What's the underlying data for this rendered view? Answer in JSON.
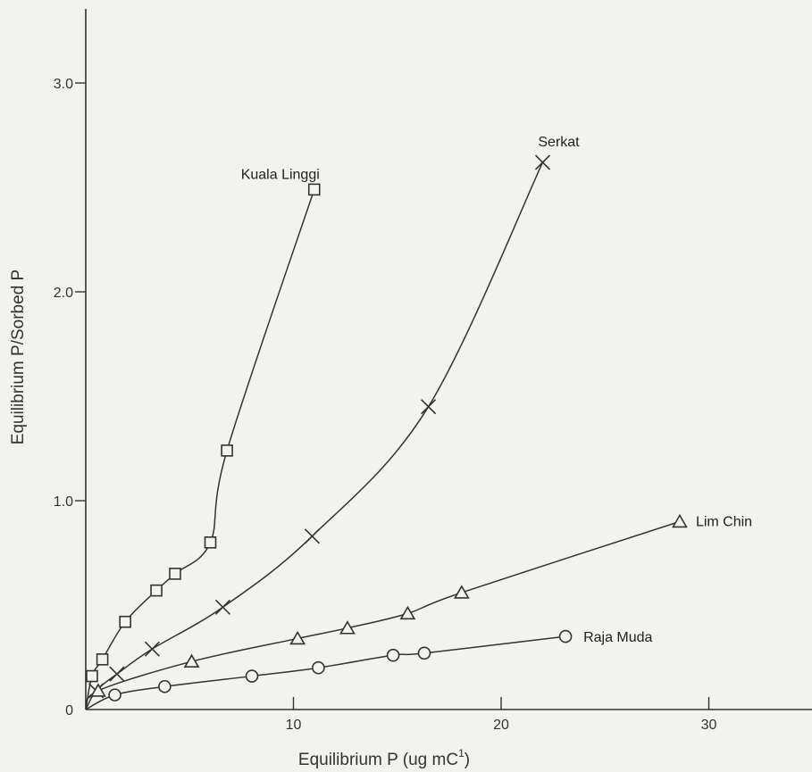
{
  "chart_data": {
    "type": "line",
    "xlabel": "Equilibrium P (ug mC",
    "xlabel_sup": "1",
    "xlabel_end": ")",
    "ylabel": "Equilibrium P/Sorbed P",
    "xlim": [
      0,
      35
    ],
    "ylim": [
      0,
      3.3
    ],
    "x_ticks": [
      0,
      10,
      20,
      30
    ],
    "x_tick_labels": [
      "",
      "10",
      "20",
      "30"
    ],
    "y_ticks": [
      0,
      1.0,
      2.0,
      3.0
    ],
    "y_tick_labels": [
      "0",
      "1.0",
      "2.0",
      "3.0"
    ],
    "grid": false,
    "legend": "labels at line ends",
    "series": [
      {
        "name": "Kuala Linggi",
        "marker": "square",
        "x": [
          0.3,
          0.8,
          1.9,
          3.4,
          4.3,
          6.0,
          6.8,
          11.0
        ],
        "y": [
          0.16,
          0.24,
          0.42,
          0.57,
          0.65,
          0.8,
          1.24,
          2.49
        ]
      },
      {
        "name": "Serkat",
        "marker": "x",
        "x": [
          0.5,
          1.5,
          3.2,
          6.6,
          10.9,
          16.5,
          22.0
        ],
        "y": [
          0.09,
          0.17,
          0.29,
          0.49,
          0.83,
          1.45,
          2.62
        ]
      },
      {
        "name": "Lim Chin",
        "marker": "triangle",
        "x": [
          0.6,
          5.1,
          10.2,
          12.6,
          15.5,
          18.1,
          28.6
        ],
        "y": [
          0.09,
          0.23,
          0.34,
          0.39,
          0.46,
          0.56,
          0.9
        ]
      },
      {
        "name": "Raja Muda",
        "marker": "circle",
        "x": [
          1.4,
          3.8,
          8.0,
          11.2,
          14.8,
          16.3,
          23.1
        ],
        "y": [
          0.07,
          0.11,
          0.16,
          0.2,
          0.26,
          0.27,
          0.35
        ]
      }
    ]
  },
  "colors": {
    "background": "#f2f2ef",
    "ink": "#333333"
  }
}
